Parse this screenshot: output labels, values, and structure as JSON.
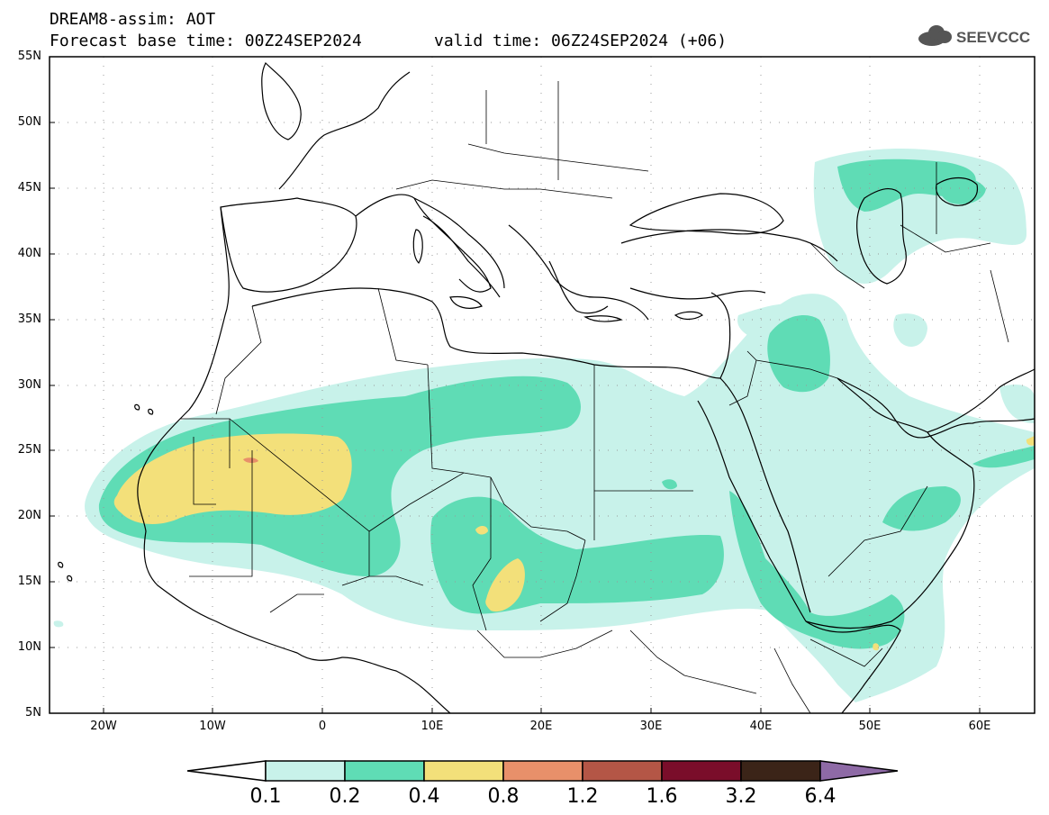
{
  "header": {
    "title": "DREAM8-assim: AOT",
    "base_time": "Forecast base time: 00Z24SEP2024",
    "valid_time": "valid time: 06Z24SEP2024 (+06)",
    "logo_text": "SEEVCCC"
  },
  "axes": {
    "lat_labels": [
      "55N",
      "50N",
      "45N",
      "40N",
      "35N",
      "30N",
      "25N",
      "20N",
      "15N",
      "10N",
      "5N"
    ],
    "lon_labels": [
      "20W",
      "10W",
      "0",
      "10E",
      "20E",
      "30E",
      "40E",
      "50E",
      "60E"
    ]
  },
  "colorbar": {
    "labels": [
      "0.1",
      "0.2",
      "0.4",
      "0.8",
      "1.2",
      "1.6",
      "3.2",
      "6.4"
    ],
    "colors": [
      "#c8f2ea",
      "#5fdcb5",
      "#f3e07a",
      "#e8906a",
      "#b45646",
      "#7a0d2a",
      "#3b2418",
      "#8e6aa6"
    ]
  },
  "map": {
    "variable": "AOT",
    "lon_range": [
      -25,
      65
    ],
    "lat_range": [
      5,
      55
    ]
  }
}
